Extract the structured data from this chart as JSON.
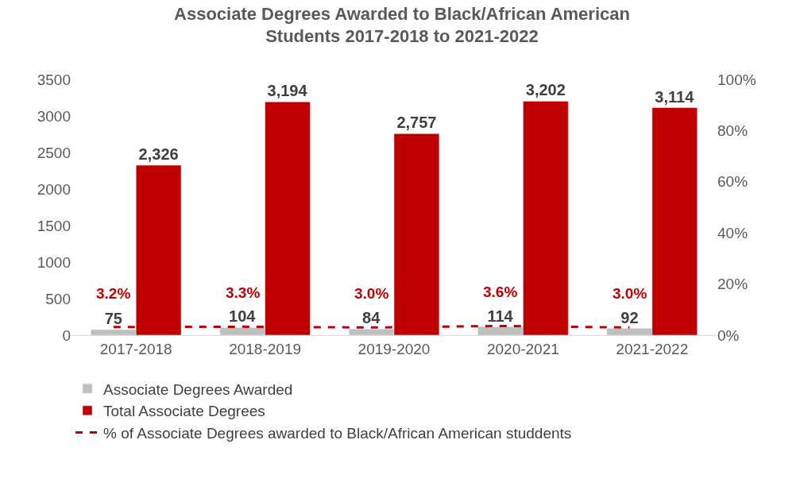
{
  "chart_data": {
    "type": "bar",
    "title": "Associate Degrees Awarded to Black/African American\nStudents 2017-2018 to 2021-2022",
    "categories": [
      "2017-2018",
      "2018-2019",
      "2019-2020",
      "2020-2021",
      "2021-2022"
    ],
    "series": [
      {
        "name": "Associate Degrees Awarded",
        "color": "#bfbfbf",
        "values": [
          75,
          104,
          84,
          114,
          92
        ],
        "value_labels": [
          "75",
          "104",
          "84",
          "114",
          "92"
        ]
      },
      {
        "name": "Total Associate Degrees",
        "color": "#c00000",
        "values": [
          2326,
          3194,
          2757,
          3202,
          3114
        ],
        "value_labels": [
          "2,326",
          "3,194",
          "2,757",
          "3,202",
          "3,114"
        ]
      },
      {
        "name": "% of Associate Degrees awarded to Black/African American studdents",
        "type": "line",
        "axis": "y2",
        "color": "#c00000",
        "line_style": "dashed",
        "values": [
          3.2,
          3.3,
          3.0,
          3.6,
          3.0
        ],
        "value_labels": [
          "3.2%",
          "3.3%",
          "3.0%",
          "3.6%",
          "3.0%"
        ]
      }
    ],
    "ylim": [
      0,
      3500
    ],
    "yticks": [
      0,
      500,
      1000,
      1500,
      2000,
      2500,
      3000,
      3500
    ],
    "y2lim": [
      0,
      100
    ],
    "y2ticks": [
      {
        "value": 0,
        "label": "0%"
      },
      {
        "value": 20,
        "label": "20%"
      },
      {
        "value": 40,
        "label": "40%"
      },
      {
        "value": 60,
        "label": "60%"
      },
      {
        "value": 80,
        "label": "80%"
      },
      {
        "value": 100,
        "label": "100%"
      }
    ],
    "legend": "bottom"
  }
}
